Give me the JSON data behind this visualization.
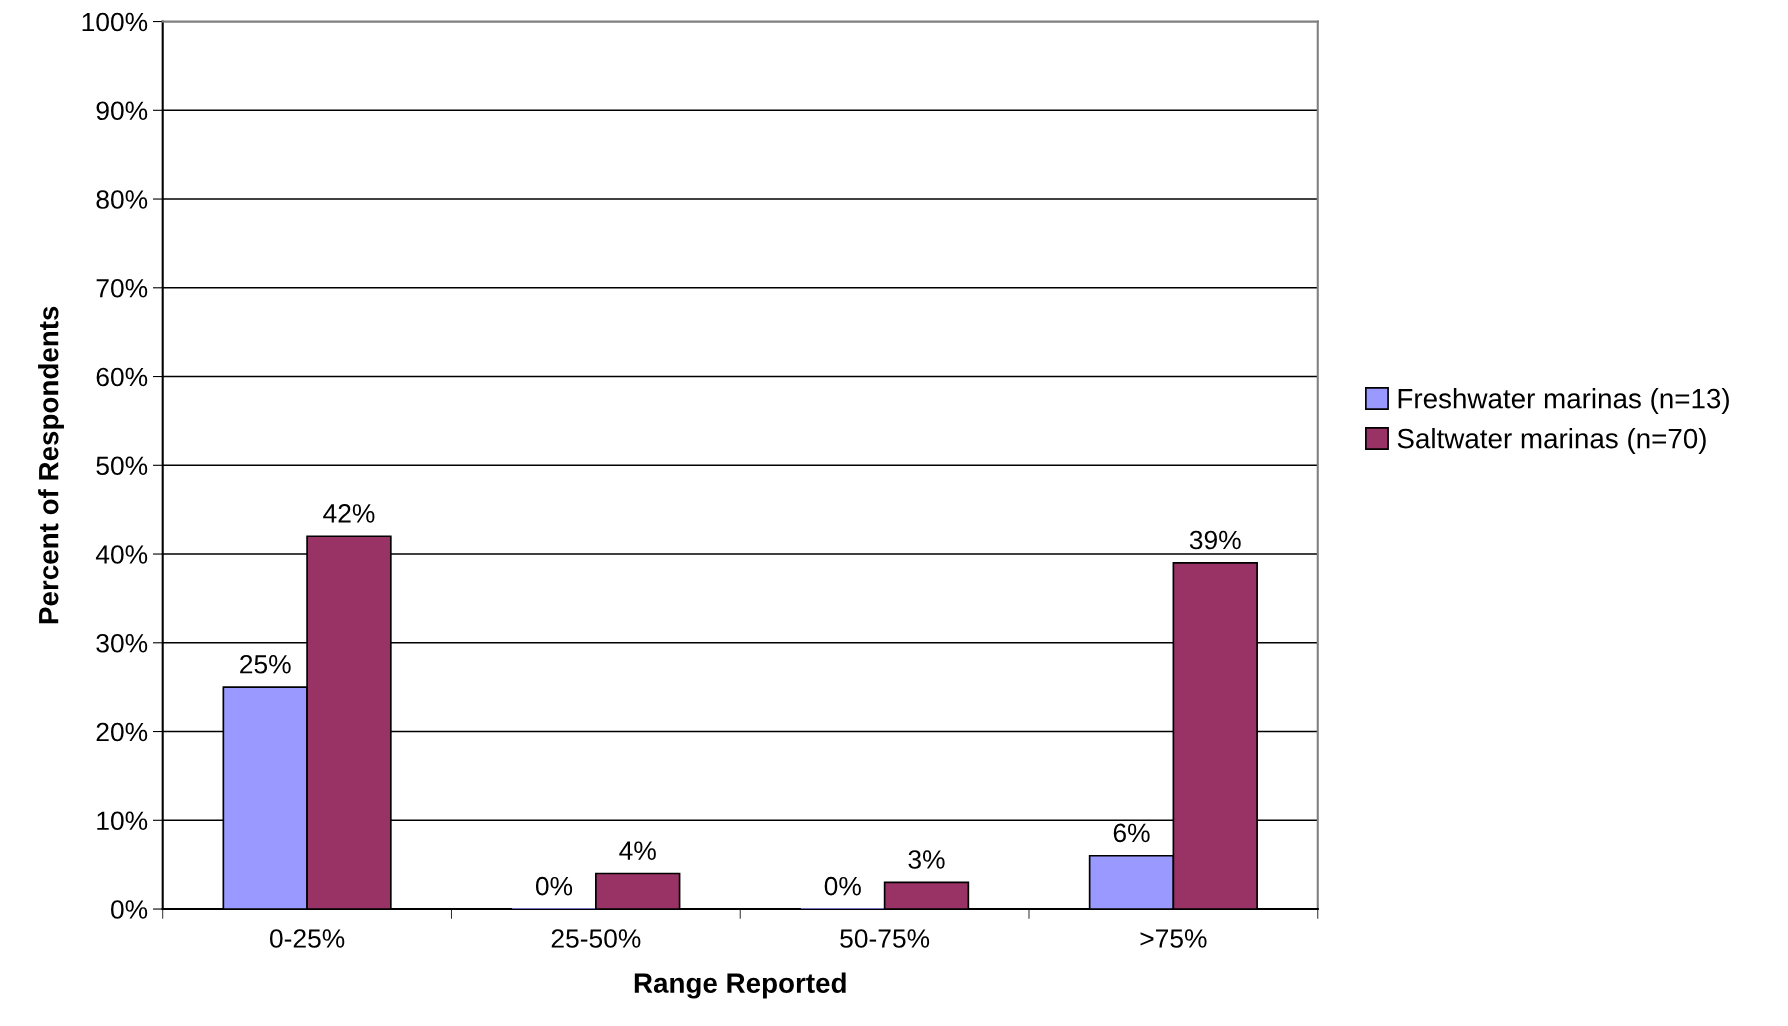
{
  "chart_data": {
    "type": "bar",
    "xlabel": "Range Reported",
    "ylabel": "Percent of Respondents",
    "categories": [
      "0-25%",
      "25-50%",
      "50-75%",
      ">75%"
    ],
    "series": [
      {
        "name": "Freshwater marinas (n=13)",
        "color": "#9999ff",
        "values": [
          25,
          0,
          0,
          6
        ],
        "value_labels": [
          "25%",
          "0%",
          "0%",
          "6%"
        ]
      },
      {
        "name": "Saltwater marinas (n=70)",
        "color": "#993366",
        "values": [
          42,
          4,
          3,
          39
        ],
        "value_labels": [
          "42%",
          "4%",
          "3%",
          "39%"
        ]
      }
    ],
    "ylim": [
      0,
      100
    ],
    "yticks": [
      {
        "value": 0,
        "label": "0%"
      },
      {
        "value": 10,
        "label": "10%"
      },
      {
        "value": 20,
        "label": "20%"
      },
      {
        "value": 30,
        "label": "30%"
      },
      {
        "value": 40,
        "label": "40%"
      },
      {
        "value": 50,
        "label": "50%"
      },
      {
        "value": 60,
        "label": "60%"
      },
      {
        "value": 70,
        "label": "70%"
      },
      {
        "value": 80,
        "label": "80%"
      },
      {
        "value": 90,
        "label": "90%"
      },
      {
        "value": 100,
        "label": "100%"
      }
    ],
    "grid": "y",
    "legend": "right"
  }
}
